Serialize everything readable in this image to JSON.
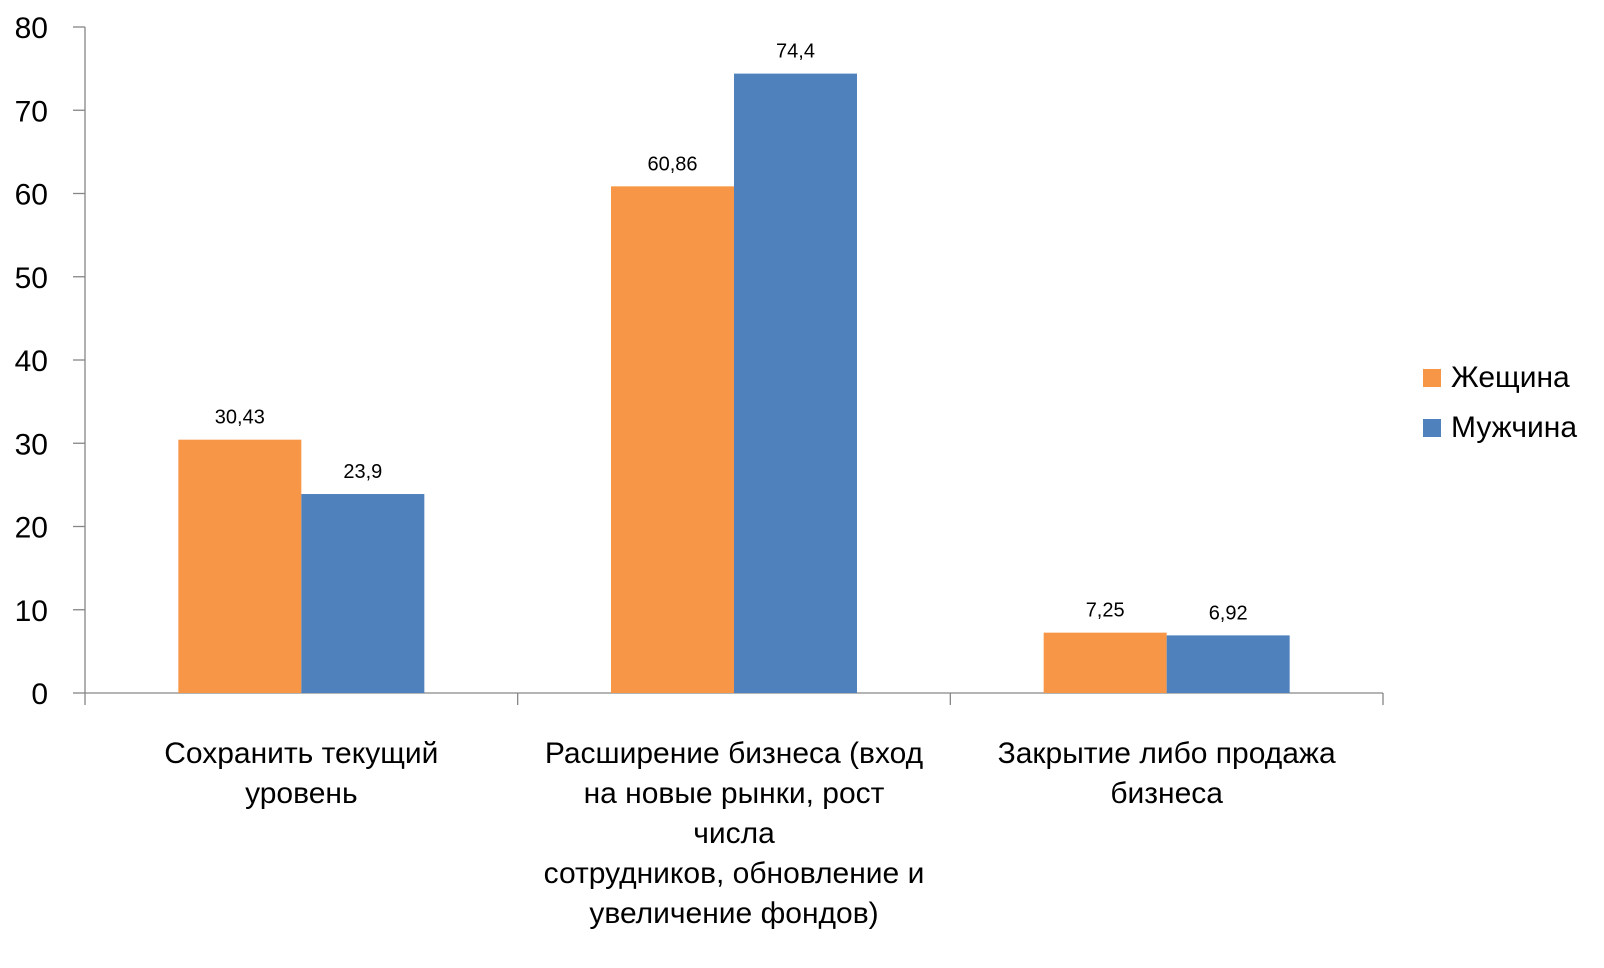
{
  "chart_data": {
    "type": "bar",
    "categories": [
      [
        "Сохранить текущий",
        "уровень"
      ],
      [
        "Расширение бизнеса (вход",
        "на новые рынки, рост",
        "числа",
        "сотрудников, обновление и",
        "увеличение фондов)"
      ],
      [
        "Закрытие либо  продажа",
        "бизнеса"
      ]
    ],
    "series": [
      {
        "name": "Жещина",
        "color": "#F79646",
        "values": [
          30.43,
          60.86,
          7.25
        ],
        "labels": [
          "30,43",
          "60,86",
          "7,25"
        ]
      },
      {
        "name": "Мужчина",
        "color": "#4F81BD",
        "values": [
          23.9,
          74.4,
          6.92
        ],
        "labels": [
          "23,9",
          "74,4",
          "6,92"
        ]
      }
    ],
    "yticks": [
      "0",
      "10",
      "20",
      "30",
      "40",
      "50",
      "60",
      "70",
      "80"
    ],
    "ylim": [
      0,
      80
    ],
    "grid": false,
    "legend_position": "right",
    "title": "",
    "xlabel": "",
    "ylabel": ""
  }
}
